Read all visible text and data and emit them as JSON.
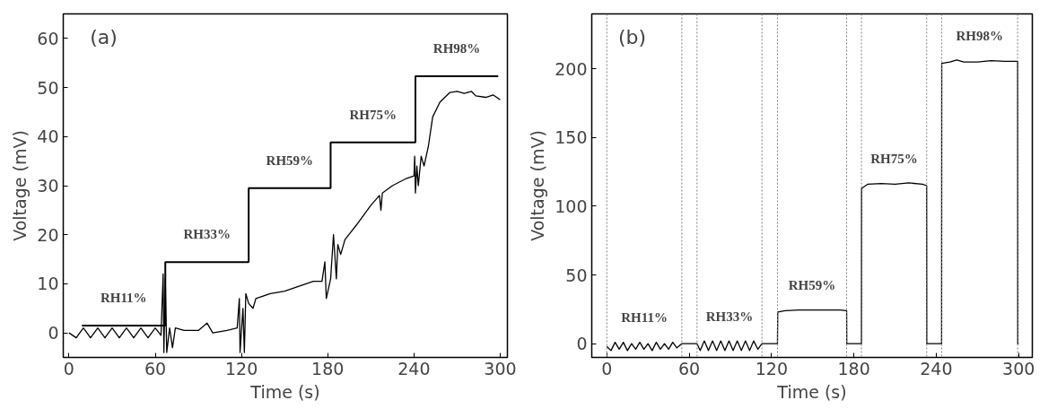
{
  "chart_data": [
    {
      "type": "line",
      "xlabel": "Time (s)",
      "ylabel": "Voltage (mV)",
      "xlim": [
        -4,
        305
      ],
      "ylim": [
        -5,
        65
      ],
      "xticks": [
        0,
        60,
        120,
        180,
        240,
        300
      ],
      "yticks": [
        0,
        10,
        20,
        30,
        40,
        50,
        60
      ],
      "grid": false,
      "series": [
        {
          "type": "step",
          "color": "#000000",
          "x": [
            9,
            67,
            125,
            182,
            241,
            298.6
          ],
          "values": [
            1.5,
            14.4,
            29.5,
            38.8,
            52.3,
            52.3
          ]
        },
        {
          "color": "#000000",
          "x": [
            0,
            5,
            10,
            15,
            20,
            25,
            30,
            35,
            40,
            45,
            50,
            55,
            60,
            64,
            65.5,
            66,
            67,
            68,
            70,
            72,
            74,
            80,
            90,
            96,
            100,
            110,
            117,
            118.5,
            119,
            121,
            122,
            123,
            125,
            128,
            130,
            140,
            150,
            160,
            170,
            176,
            178,
            179,
            182,
            184,
            186,
            187,
            189,
            192,
            200,
            210,
            216,
            217,
            218,
            225,
            235,
            240,
            240.5,
            241,
            242,
            243,
            245,
            247,
            250,
            253,
            258,
            265,
            270,
            275,
            280,
            283,
            290,
            295,
            300
          ],
          "values": [
            0,
            -1,
            1,
            -1,
            1,
            -1,
            1,
            -1,
            1,
            -1,
            1,
            -1,
            1,
            -0.5,
            12,
            -4,
            11,
            -4,
            1,
            -3,
            1,
            0.5,
            0.5,
            2,
            0,
            0.5,
            1,
            7,
            -4,
            5,
            -4,
            8,
            6,
            5,
            7,
            8,
            8.5,
            9.5,
            10.5,
            10.5,
            14.5,
            7,
            11,
            20,
            11,
            18,
            16,
            19,
            22,
            26,
            28,
            25,
            28.5,
            30,
            31.5,
            32,
            36,
            28.5,
            34,
            30,
            36,
            34,
            38,
            44,
            47,
            49,
            49.2,
            48.8,
            49.2,
            48.3,
            48,
            48.5,
            47.5
          ]
        }
      ],
      "annotations": [
        "(a)",
        "RH11%",
        "RH33%",
        "RH59%",
        "RH75%",
        "RH98%"
      ]
    },
    {
      "type": "line",
      "xlabel": "Time (s)",
      "ylabel": "Voltage (mV)",
      "xlim": [
        -11,
        310
      ],
      "ylim": [
        -10,
        240
      ],
      "xticks": [
        0,
        60,
        120,
        180,
        240,
        300
      ],
      "yticks": [
        0,
        50,
        100,
        150,
        200
      ],
      "grid": false,
      "series": [
        {
          "color": "#000000",
          "x": [
            0,
            3,
            6,
            9,
            12,
            15,
            18,
            21,
            24,
            27,
            30,
            33,
            36,
            39,
            42,
            45,
            48,
            51,
            54.6,
            65.7,
            68,
            71,
            74,
            77,
            80,
            83,
            86,
            89,
            92,
            95,
            98,
            101,
            104,
            107,
            110,
            113,
            124.3,
            124.5,
            130,
            140,
            150,
            160,
            170,
            174.7,
            174.8,
            185.5,
            185.6,
            190,
            200,
            210,
            220,
            230,
            233,
            233.1,
            243.9,
            244,
            250,
            255,
            260,
            270,
            280,
            290,
            299.3,
            299.4,
            300
          ],
          "values": [
            -2,
            -5,
            1,
            -4,
            1,
            -5,
            0,
            -4,
            1,
            -4,
            0,
            -5,
            1,
            -4,
            0,
            -4,
            1,
            -3,
            0,
            0,
            -5,
            2,
            -5,
            2,
            -5,
            2,
            -5,
            2,
            -5,
            2,
            -5,
            2,
            -5,
            2,
            -4,
            0,
            0,
            23,
            24,
            24.5,
            24.5,
            24.5,
            24.5,
            24,
            0,
            0,
            113,
            116,
            116.5,
            116,
            117,
            116,
            115,
            0,
            0,
            204,
            205,
            206.5,
            205,
            205,
            206,
            205.5,
            205.5,
            0,
            0
          ]
        }
      ],
      "ref_lines": [
        {
          "axis": "x",
          "value": 0,
          "color": "#808080",
          "line_style": "dotted"
        },
        {
          "axis": "x",
          "value": 54.6,
          "color": "#808080",
          "line_style": "dotted"
        },
        {
          "axis": "x",
          "value": 65.7,
          "color": "#808080",
          "line_style": "dotted"
        },
        {
          "axis": "x",
          "value": 113,
          "color": "#808080",
          "line_style": "dotted"
        },
        {
          "axis": "x",
          "value": 124.3,
          "color": "#808080",
          "line_style": "dotted"
        },
        {
          "axis": "x",
          "value": 174.7,
          "color": "#808080",
          "line_style": "dotted"
        },
        {
          "axis": "x",
          "value": 185.5,
          "color": "#808080",
          "line_style": "dotted"
        },
        {
          "axis": "x",
          "value": 233,
          "color": "#808080",
          "line_style": "dotted"
        },
        {
          "axis": "x",
          "value": 243.9,
          "color": "#808080",
          "line_style": "dotted"
        },
        {
          "axis": "x",
          "value": 299.3,
          "color": "#808080",
          "line_style": "dotted"
        }
      ],
      "annotations": [
        "(b)",
        "RH11%",
        "RH33%",
        "RH59%",
        "RH75%",
        "RH98%"
      ]
    }
  ]
}
